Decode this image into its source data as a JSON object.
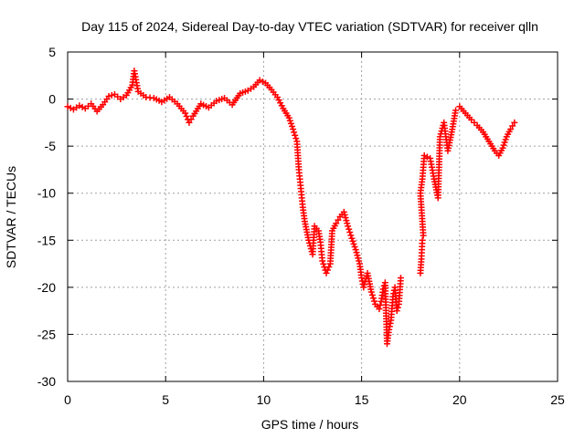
{
  "chart_data": {
    "type": "scatter",
    "title": "Day 115 of 2024, Sidereal Day-to-day VTEC variation (SDTVAR) for receiver qlln",
    "xlabel": "GPS time / hours",
    "ylabel": "SDTVAR / TECUs",
    "xlim": [
      0,
      25
    ],
    "ylim": [
      -30,
      5
    ],
    "xticks": [
      0,
      5,
      10,
      15,
      20,
      25
    ],
    "yticks": [
      5,
      0,
      -5,
      -10,
      -15,
      -20,
      -25,
      -30
    ],
    "xtick_labels": [
      "0",
      "5",
      "10",
      "15",
      "20",
      "25"
    ],
    "ytick_labels": [
      "5",
      "0",
      "-5",
      "-10",
      "-15",
      "-20",
      "-25",
      "-30"
    ],
    "grid": true,
    "marker": "+",
    "color": "#ff0000",
    "series": [
      {
        "name": "qlln",
        "points": [
          [
            0.0,
            -0.8
          ],
          [
            0.3,
            -1.1
          ],
          [
            0.6,
            -0.7
          ],
          [
            0.9,
            -1.0
          ],
          [
            1.2,
            -0.5
          ],
          [
            1.5,
            -1.3
          ],
          [
            1.8,
            -0.6
          ],
          [
            2.1,
            0.3
          ],
          [
            2.4,
            0.5
          ],
          [
            2.7,
            0.0
          ],
          [
            3.0,
            0.4
          ],
          [
            3.3,
            1.5
          ],
          [
            3.4,
            3.0
          ],
          [
            3.6,
            0.8
          ],
          [
            4.0,
            0.2
          ],
          [
            4.4,
            0.1
          ],
          [
            4.8,
            -0.3
          ],
          [
            5.2,
            0.2
          ],
          [
            5.6,
            -0.5
          ],
          [
            6.0,
            -1.5
          ],
          [
            6.2,
            -2.5
          ],
          [
            6.4,
            -1.8
          ],
          [
            6.8,
            -0.5
          ],
          [
            7.2,
            -0.9
          ],
          [
            7.6,
            -0.2
          ],
          [
            8.0,
            0.1
          ],
          [
            8.4,
            -0.6
          ],
          [
            8.8,
            0.6
          ],
          [
            9.2,
            0.9
          ],
          [
            9.5,
            1.3
          ],
          [
            9.8,
            2.0
          ],
          [
            10.1,
            1.7
          ],
          [
            10.4,
            1.0
          ],
          [
            10.7,
            0.2
          ],
          [
            11.0,
            -1.0
          ],
          [
            11.3,
            -2.0
          ],
          [
            11.5,
            -3.2
          ],
          [
            11.7,
            -4.5
          ],
          [
            11.8,
            -7.5
          ],
          [
            11.9,
            -9.5
          ],
          [
            12.0,
            -11.5
          ],
          [
            12.1,
            -13.0
          ],
          [
            12.3,
            -15.0
          ],
          [
            12.5,
            -16.5
          ],
          [
            12.6,
            -13.5
          ],
          [
            12.8,
            -14.0
          ],
          [
            12.9,
            -15.2
          ],
          [
            13.0,
            -17.2
          ],
          [
            13.2,
            -18.5
          ],
          [
            13.4,
            -17.5
          ],
          [
            13.5,
            -14.0
          ],
          [
            13.7,
            -13.2
          ],
          [
            13.9,
            -12.5
          ],
          [
            14.1,
            -12.0
          ],
          [
            14.3,
            -13.5
          ],
          [
            14.5,
            -14.8
          ],
          [
            14.7,
            -16.0
          ],
          [
            14.9,
            -17.5
          ],
          [
            15.0,
            -19.0
          ],
          [
            15.1,
            -20.0
          ],
          [
            15.3,
            -18.5
          ],
          [
            15.5,
            -20.5
          ],
          [
            15.7,
            -21.8
          ],
          [
            15.9,
            -22.3
          ],
          [
            16.0,
            -21.5
          ],
          [
            16.1,
            -20.2
          ],
          [
            16.2,
            -19.5
          ],
          [
            16.3,
            -26.0
          ],
          [
            16.4,
            -24.5
          ],
          [
            16.5,
            -23.5
          ],
          [
            16.6,
            -21.0
          ],
          [
            16.7,
            -20.0
          ],
          [
            16.8,
            -22.5
          ],
          [
            16.9,
            -21.8
          ],
          [
            17.0,
            -19.0
          ],
          [
            18.0,
            -18.5
          ],
          [
            18.05,
            -17.0
          ],
          [
            18.1,
            -15.0
          ],
          [
            18.15,
            -14.5
          ],
          [
            18.0,
            -10.0
          ],
          [
            18.1,
            -8.5
          ],
          [
            18.2,
            -6.0
          ],
          [
            18.5,
            -6.3
          ],
          [
            18.7,
            -8.5
          ],
          [
            18.9,
            -10.5
          ],
          [
            19.0,
            -4.0
          ],
          [
            19.2,
            -2.5
          ],
          [
            19.4,
            -5.5
          ],
          [
            19.6,
            -3.5
          ],
          [
            19.8,
            -1.2
          ],
          [
            20.0,
            -0.8
          ],
          [
            20.3,
            -1.5
          ],
          [
            20.6,
            -2.2
          ],
          [
            20.9,
            -2.8
          ],
          [
            21.2,
            -3.5
          ],
          [
            21.5,
            -4.5
          ],
          [
            21.8,
            -5.5
          ],
          [
            22.0,
            -6.0
          ],
          [
            22.2,
            -5.2
          ],
          [
            22.4,
            -4.0
          ],
          [
            22.6,
            -3.2
          ],
          [
            22.8,
            -2.5
          ]
        ]
      }
    ]
  }
}
